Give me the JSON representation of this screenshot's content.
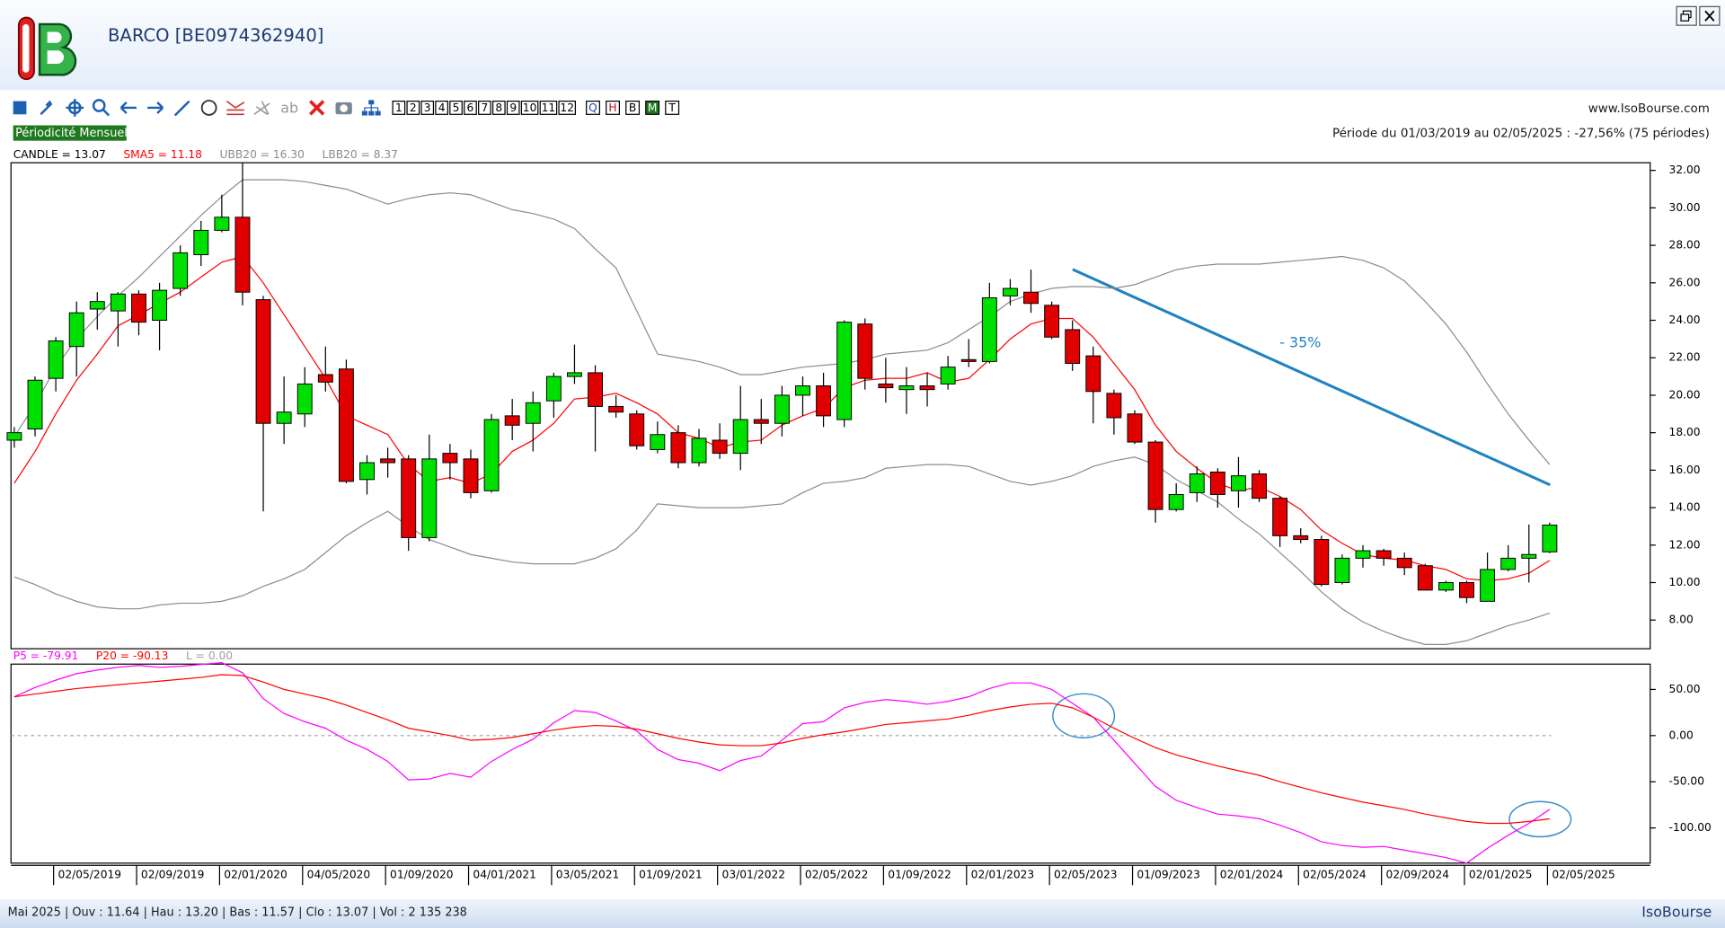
{
  "header": {
    "title": "BARCO [BE0974362940]",
    "site": "www.IsoBourse.com",
    "period": "Période du 01/03/2019 au 02/05/2025 : -27,56% (75 périodes)",
    "periodicity": "Périodicité Mensuelle"
  },
  "toolbar": {
    "text_tool": "ab",
    "numbers": [
      "1",
      "2",
      "3",
      "4",
      "5",
      "6",
      "7",
      "8",
      "9",
      "10",
      "11",
      "12"
    ],
    "modes": [
      "Q",
      "H",
      "B",
      "M",
      "T"
    ],
    "active_mode": "M"
  },
  "chart_data": [
    {
      "type": "candlestick",
      "candle_name": "CANDLE = 13.07",
      "annotation": "- 35%",
      "categories": [
        null,
        null,
        "02/05/2019",
        null,
        null,
        null,
        "02/09/2019",
        null,
        null,
        null,
        "02/01/2020",
        null,
        null,
        null,
        "04/05/2020",
        null,
        null,
        null,
        "01/09/2020",
        null,
        null,
        null,
        "04/01/2021",
        null,
        null,
        null,
        "03/05/2021",
        null,
        null,
        null,
        "01/09/2021",
        null,
        null,
        null,
        "03/01/2022",
        null,
        null,
        null,
        "02/05/2022",
        null,
        null,
        null,
        "01/09/2022",
        null,
        null,
        null,
        "02/01/2023",
        null,
        null,
        null,
        "02/05/2023",
        null,
        null,
        null,
        "01/09/2023",
        null,
        null,
        null,
        "02/01/2024",
        null,
        null,
        null,
        "02/05/2024",
        null,
        null,
        null,
        "02/09/2024",
        null,
        null,
        null,
        "02/01/2025",
        null,
        null,
        null,
        "02/05/2025"
      ],
      "open": [
        17.6,
        18.2,
        20.9,
        22.6,
        24.6,
        24.5,
        25.4,
        24.0,
        25.7,
        27.5,
        28.8,
        29.5,
        25.1,
        18.5,
        19.0,
        21.1,
        21.4,
        15.5,
        16.6,
        16.6,
        12.4,
        16.9,
        16.6,
        14.9,
        18.9,
        18.5,
        19.7,
        21.0,
        21.2,
        19.4,
        19.0,
        17.1,
        18.0,
        16.4,
        17.6,
        16.9,
        18.7,
        18.5,
        20.0,
        20.5,
        18.7,
        23.8,
        20.6,
        20.3,
        20.5,
        20.6,
        21.9,
        21.8,
        25.3,
        25.5,
        24.8,
        23.5,
        22.1,
        20.1,
        19.0,
        17.5,
        13.9,
        14.8,
        15.9,
        14.9,
        15.8,
        14.5,
        12.5,
        12.3,
        10.0,
        11.3,
        11.7,
        11.3,
        10.9,
        9.6,
        10.0,
        9.0,
        10.7,
        11.3,
        11.64
      ],
      "high": [
        18.3,
        21.0,
        23.1,
        25.0,
        25.5,
        25.5,
        25.6,
        26.0,
        28.0,
        29.3,
        30.7,
        32.4,
        25.3,
        21.0,
        21.5,
        22.6,
        21.9,
        16.8,
        17.2,
        16.8,
        17.9,
        17.4,
        17.1,
        19.0,
        19.8,
        20.2,
        21.2,
        22.7,
        21.6,
        20.0,
        19.2,
        18.6,
        18.4,
        18.2,
        18.5,
        20.5,
        19.8,
        20.5,
        21.0,
        21.2,
        24.0,
        24.1,
        22.0,
        21.5,
        21.2,
        22.1,
        23.0,
        26.0,
        26.2,
        26.7,
        25.0,
        24.0,
        22.6,
        20.3,
        19.2,
        17.6,
        15.3,
        16.2,
        16.1,
        16.7,
        16.0,
        14.6,
        12.9,
        12.5,
        11.5,
        12.0,
        11.8,
        11.6,
        11.0,
        10.1,
        10.1,
        11.6,
        12.0,
        13.1,
        13.2
      ],
      "low": [
        17.2,
        17.8,
        20.2,
        21.0,
        23.5,
        22.6,
        23.2,
        22.4,
        25.3,
        26.9,
        28.7,
        24.8,
        13.8,
        17.4,
        18.3,
        20.2,
        15.3,
        14.7,
        15.6,
        11.7,
        12.2,
        15.5,
        14.5,
        14.8,
        17.6,
        17.0,
        18.8,
        20.6,
        17.0,
        18.8,
        17.1,
        16.9,
        16.1,
        16.2,
        16.6,
        16.0,
        17.4,
        17.8,
        18.9,
        18.3,
        18.3,
        20.3,
        19.6,
        19.0,
        19.4,
        20.3,
        21.5,
        21.7,
        24.8,
        24.4,
        23.0,
        21.3,
        18.5,
        17.9,
        17.4,
        13.2,
        13.8,
        14.3,
        14.0,
        14.0,
        14.3,
        11.9,
        12.1,
        9.8,
        9.9,
        10.8,
        10.9,
        10.4,
        9.6,
        9.5,
        8.9,
        9.0,
        10.6,
        10.0,
        11.57
      ],
      "close": [
        18.0,
        20.8,
        22.9,
        24.4,
        25.0,
        25.4,
        23.9,
        25.6,
        27.6,
        28.8,
        29.5,
        25.5,
        18.5,
        19.1,
        20.6,
        20.7,
        15.4,
        16.4,
        16.4,
        12.4,
        16.6,
        16.4,
        14.8,
        18.7,
        18.4,
        19.6,
        21.0,
        21.2,
        19.4,
        19.1,
        17.3,
        17.9,
        16.4,
        17.7,
        16.9,
        18.7,
        18.5,
        20.0,
        20.5,
        18.9,
        23.9,
        20.9,
        20.4,
        20.5,
        20.3,
        21.5,
        21.8,
        25.2,
        25.7,
        24.9,
        23.1,
        21.7,
        20.2,
        18.8,
        17.5,
        13.9,
        14.7,
        15.8,
        14.7,
        15.7,
        14.5,
        12.5,
        12.3,
        9.9,
        11.3,
        11.7,
        11.3,
        10.8,
        9.6,
        10.0,
        9.2,
        10.7,
        11.3,
        11.5,
        13.07
      ],
      "series": [
        {
          "name": "SMA5 = 11.18",
          "color": "#ff0000",
          "values": [
            15.3,
            17.0,
            19.0,
            20.8,
            22.2,
            23.7,
            24.3,
            24.9,
            25.5,
            26.3,
            27.1,
            27.4,
            26.0,
            24.3,
            22.6,
            20.9,
            18.9,
            18.4,
            17.9,
            16.3,
            15.4,
            15.6,
            15.3,
            15.8,
            17.0,
            17.6,
            18.5,
            19.8,
            19.9,
            20.1,
            19.6,
            19.0,
            18.0,
            17.7,
            17.2,
            17.5,
            17.6,
            18.4,
            18.9,
            19.3,
            20.4,
            20.8,
            20.9,
            20.9,
            21.2,
            20.7,
            20.9,
            21.9,
            23.0,
            23.8,
            24.1,
            24.1,
            23.1,
            21.7,
            20.3,
            18.4,
            17.0,
            16.1,
            15.3,
            14.9,
            15.1,
            14.6,
            13.9,
            12.8,
            12.1,
            11.5,
            11.3,
            11.2,
            10.9,
            10.7,
            10.2,
            10.1,
            10.2,
            10.5,
            11.18
          ]
        },
        {
          "name": "UBB20 = 16.30",
          "color": "#8c8c8c",
          "values": [
            17.8,
            19.5,
            21.5,
            23.0,
            24.2,
            25.3,
            26.3,
            27.4,
            28.5,
            29.6,
            30.6,
            31.5,
            31.5,
            31.5,
            31.4,
            31.2,
            31.0,
            30.6,
            30.2,
            30.5,
            30.7,
            30.8,
            30.7,
            30.3,
            29.9,
            29.7,
            29.4,
            28.9,
            27.8,
            26.8,
            24.5,
            22.2,
            22.0,
            21.8,
            21.5,
            21.1,
            21.1,
            21.3,
            21.5,
            21.6,
            21.7,
            21.9,
            22.2,
            22.3,
            22.4,
            22.8,
            23.5,
            24.2,
            25.0,
            25.4,
            25.7,
            25.8,
            25.8,
            25.7,
            25.9,
            26.3,
            26.7,
            26.9,
            27.0,
            27.0,
            27.0,
            27.1,
            27.2,
            27.3,
            27.4,
            27.2,
            26.8,
            26.1,
            25.0,
            23.8,
            22.3,
            20.6,
            19.0,
            17.6,
            16.3
          ]
        },
        {
          "name": "LBB20 = 8.37",
          "color": "#8c8c8c",
          "values": [
            10.3,
            9.9,
            9.4,
            9.0,
            8.7,
            8.6,
            8.6,
            8.8,
            8.9,
            8.9,
            9.0,
            9.3,
            9.8,
            10.2,
            10.7,
            11.6,
            12.5,
            13.2,
            13.8,
            13.0,
            12.3,
            11.9,
            11.5,
            11.3,
            11.1,
            11.0,
            11.0,
            11.0,
            11.3,
            11.8,
            12.8,
            14.2,
            14.1,
            14.0,
            14.0,
            14.0,
            14.1,
            14.2,
            14.8,
            15.3,
            15.4,
            15.6,
            16.1,
            16.2,
            16.3,
            16.3,
            16.2,
            15.8,
            15.4,
            15.2,
            15.4,
            15.7,
            16.2,
            16.5,
            16.7,
            16.3,
            15.5,
            14.9,
            14.3,
            13.4,
            12.6,
            11.6,
            10.6,
            9.5,
            8.6,
            7.9,
            7.4,
            7.0,
            6.7,
            6.7,
            6.9,
            7.3,
            7.7,
            8.0,
            8.37
          ]
        }
      ],
      "ylim": [
        6.47,
        32.35
      ],
      "yticks": [
        {
          "value": 8,
          "label": "8.00"
        },
        {
          "value": 10,
          "label": "10.00"
        },
        {
          "value": 12,
          "label": "12.00"
        },
        {
          "value": 14,
          "label": "14.00"
        },
        {
          "value": 16,
          "label": "16.00"
        },
        {
          "value": 18,
          "label": "18.00"
        },
        {
          "value": 20,
          "label": "20.00"
        },
        {
          "value": 22,
          "label": "22.00"
        },
        {
          "value": 24,
          "label": "24.00"
        },
        {
          "value": 26,
          "label": "26.00"
        },
        {
          "value": 28,
          "label": "28.00"
        },
        {
          "value": 30,
          "label": "30.00"
        },
        {
          "value": 32,
          "label": "32.00"
        }
      ],
      "up_color": "#00e000",
      "down_color": "#e00000"
    },
    {
      "type": "line",
      "series": [
        {
          "name": "P5 = -79.91",
          "color": "#ff00ff",
          "values": [
            42,
            52,
            60,
            67,
            71,
            74,
            76,
            74,
            75,
            77,
            79,
            68,
            40,
            24,
            15,
            8,
            -5,
            -15,
            -28,
            -48,
            -47,
            -41,
            -45,
            -28,
            -15,
            -4,
            14,
            27,
            25,
            16,
            5,
            -15,
            -26,
            -30,
            -38,
            -27,
            -22,
            -5,
            13,
            15,
            30,
            36,
            39,
            37,
            34,
            37,
            42,
            51,
            57,
            57,
            50,
            35,
            20,
            -5,
            -30,
            -55,
            -70,
            -78,
            -85,
            -87,
            -90,
            -97,
            -105,
            -115,
            -119,
            -121,
            -120,
            -124,
            -128,
            -132,
            -138,
            -122,
            -108,
            -95,
            -79.91
          ]
        },
        {
          "name": "P20 = -90.13",
          "color": "#ff0000",
          "values": [
            42,
            45,
            48,
            51,
            53,
            55,
            57,
            59,
            61,
            63,
            66,
            65,
            58,
            50,
            45,
            40,
            33,
            25,
            17,
            8,
            4,
            0,
            -5,
            -4,
            -2,
            2,
            6,
            9,
            11,
            10,
            7,
            2,
            -3,
            -7,
            -10,
            -11,
            -11,
            -8,
            -3,
            1,
            4,
            8,
            12,
            14,
            16,
            18,
            22,
            27,
            31,
            34,
            35,
            30,
            20,
            8,
            -3,
            -13,
            -21,
            -27,
            -33,
            -38,
            -43,
            -50,
            -56,
            -62,
            -67,
            -72,
            -76,
            -80,
            -85,
            -89,
            -93,
            -95,
            -95,
            -93,
            -90.13
          ]
        }
      ],
      "reference": {
        "name": "L = 0.00",
        "value": 0,
        "color": "#a0a0a0"
      },
      "ylim": [
        -138.1,
        77.4
      ],
      "yticks": [
        {
          "value": 50,
          "label": "50.00"
        },
        {
          "value": 0,
          "label": "0.00"
        },
        {
          "value": -50,
          "label": "-50.00"
        },
        {
          "value": -100,
          "label": "-100.00"
        }
      ]
    }
  ],
  "status": {
    "text": "Mai 2025 | Ouv : 11.64 | Hau : 13.20 | Bas : 11.57 | Clo : 13.07 | Vol : 2 135 238",
    "brand": "IsoBourse"
  }
}
